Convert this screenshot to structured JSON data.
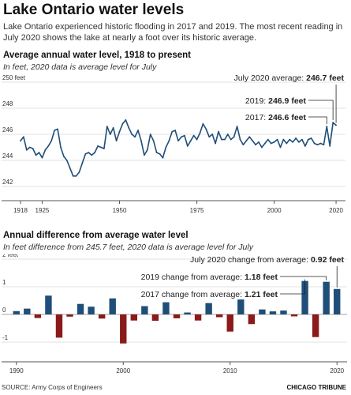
{
  "title": "Lake Ontario water levels",
  "subtitle": "Lake Ontario experienced historic flooding in 2017 and 2019. The most recent reading in July 2020 shows the lake at nearly a foot over its historic average.",
  "footer": {
    "source": "SOURCE: Army Corps of Engineers",
    "credit": "CHICAGO TRIBUNE"
  },
  "colors": {
    "line": "#1f4e79",
    "positive": "#1f4e79",
    "negative": "#8b1a1a"
  },
  "chart_data": [
    {
      "type": "line",
      "title": "Average annual water level, 1918 to present",
      "note": "In feet, 2020 data is average level for July",
      "ylim": [
        242,
        250
      ],
      "xlim": [
        1918,
        2021
      ],
      "yticks": [
        {
          "value": 250,
          "label": "250 feet"
        },
        {
          "value": 248,
          "label": "248"
        },
        {
          "value": 246,
          "label": "246"
        },
        {
          "value": 244,
          "label": "244"
        },
        {
          "value": 242,
          "label": "242"
        }
      ],
      "xticks": [
        {
          "value": 1918,
          "label": "1918"
        },
        {
          "value": 1925,
          "label": "1925"
        },
        {
          "value": 1950,
          "label": "1950"
        },
        {
          "value": 1975,
          "label": "1975"
        },
        {
          "value": 2000,
          "label": "2000"
        },
        {
          "value": 2020,
          "label": "2020"
        }
      ],
      "x": [
        1918,
        1919,
        1920,
        1921,
        1922,
        1923,
        1924,
        1925,
        1926,
        1927,
        1928,
        1929,
        1930,
        1931,
        1932,
        1933,
        1934,
        1935,
        1936,
        1937,
        1938,
        1939,
        1940,
        1941,
        1942,
        1943,
        1944,
        1945,
        1946,
        1947,
        1948,
        1949,
        1950,
        1951,
        1952,
        1953,
        1954,
        1955,
        1956,
        1957,
        1958,
        1959,
        1960,
        1961,
        1962,
        1963,
        1964,
        1965,
        1966,
        1967,
        1968,
        1969,
        1970,
        1971,
        1972,
        1973,
        1974,
        1975,
        1976,
        1977,
        1978,
        1979,
        1980,
        1981,
        1982,
        1983,
        1984,
        1985,
        1986,
        1987,
        1988,
        1989,
        1990,
        1991,
        1992,
        1993,
        1994,
        1995,
        1996,
        1997,
        1998,
        1999,
        2000,
        2001,
        2002,
        2003,
        2004,
        2005,
        2006,
        2007,
        2008,
        2009,
        2010,
        2011,
        2012,
        2013,
        2014,
        2015,
        2016,
        2017,
        2018,
        2019,
        2020
      ],
      "values": [
        245.5,
        245.8,
        244.8,
        245.0,
        244.9,
        244.4,
        244.6,
        244.2,
        244.8,
        245.1,
        245.5,
        246.3,
        246.4,
        245.0,
        244.3,
        244.0,
        243.4,
        242.8,
        242.8,
        243.1,
        243.8,
        244.5,
        244.6,
        244.4,
        244.6,
        245.1,
        245.0,
        244.9,
        246.6,
        246.0,
        246.5,
        245.5,
        246.2,
        246.8,
        247.1,
        246.5,
        246.0,
        245.8,
        246.3,
        245.5,
        244.4,
        244.8,
        246.0,
        245.5,
        244.6,
        244.5,
        244.2,
        245.0,
        245.5,
        246.2,
        246.3,
        245.5,
        245.8,
        245.9,
        245.1,
        245.5,
        245.9,
        245.6,
        246.1,
        246.8,
        246.4,
        245.8,
        246.0,
        245.3,
        246.2,
        245.6,
        245.6,
        246.0,
        245.6,
        245.8,
        246.6,
        245.6,
        245.2,
        245.5,
        245.8,
        245.5,
        245.2,
        245.4,
        245.0,
        245.3,
        245.6,
        245.3,
        245.4,
        245.6,
        245.0,
        245.6,
        245.3,
        245.6,
        245.4,
        245.7,
        245.4,
        245.6,
        245.1,
        245.6,
        245.7,
        245.3,
        245.2,
        245.3,
        245.2,
        246.6,
        245.1,
        246.9,
        246.7
      ],
      "annotations": [
        {
          "x": 2020,
          "y": 246.7,
          "text": "July 2020 average: ",
          "bold": "246.7 feet"
        },
        {
          "x": 2019,
          "y": 246.9,
          "text": "2019: ",
          "bold": "246.9 feet"
        },
        {
          "x": 2017,
          "y": 246.6,
          "text": "2017: ",
          "bold": "246.6 feet"
        }
      ]
    },
    {
      "type": "bar",
      "title": "Annual difference from average water level",
      "note": "In feet difference from 245.7 feet, 2020 data is average level for July",
      "ylim": [
        -1.6,
        2
      ],
      "xlim": [
        1989.5,
        2020.5
      ],
      "yticks": [
        {
          "value": 2,
          "label": "2 feet"
        },
        {
          "value": 1,
          "label": "1"
        },
        {
          "value": 0,
          "label": "0"
        },
        {
          "value": -1,
          "label": "-1"
        }
      ],
      "xticks": [
        {
          "value": 1990,
          "label": "1990"
        },
        {
          "value": 2000,
          "label": "2000"
        },
        {
          "value": 2010,
          "label": "2010"
        },
        {
          "value": 2020,
          "label": "2020"
        }
      ],
      "x": [
        1990,
        1991,
        1992,
        1993,
        1994,
        1995,
        1996,
        1997,
        1998,
        1999,
        2000,
        2001,
        2002,
        2003,
        2004,
        2005,
        2006,
        2007,
        2008,
        2009,
        2010,
        2011,
        2012,
        2013,
        2014,
        2015,
        2016,
        2017,
        2018,
        2019,
        2020
      ],
      "values": [
        0.12,
        0.21,
        -0.13,
        0.68,
        -0.84,
        -0.08,
        0.38,
        0.28,
        -0.15,
        0.58,
        -1.05,
        -0.22,
        0.3,
        -0.23,
        0.44,
        -0.14,
        0.07,
        -0.22,
        0.41,
        -0.1,
        -0.62,
        0.54,
        -0.35,
        0.18,
        0.11,
        0.14,
        -0.07,
        1.21,
        -0.82,
        1.18,
        0.92
      ],
      "annotations": [
        {
          "x": 2020,
          "y": 0.92,
          "text": "July 2020 change from average: ",
          "bold": "0.92 feet"
        },
        {
          "x": 2019,
          "y": 1.18,
          "text": "2019 change from average: ",
          "bold": "1.18 feet"
        },
        {
          "x": 2017,
          "y": 1.21,
          "text": "2017 change from average: ",
          "bold": "1.21 feet"
        }
      ]
    }
  ]
}
